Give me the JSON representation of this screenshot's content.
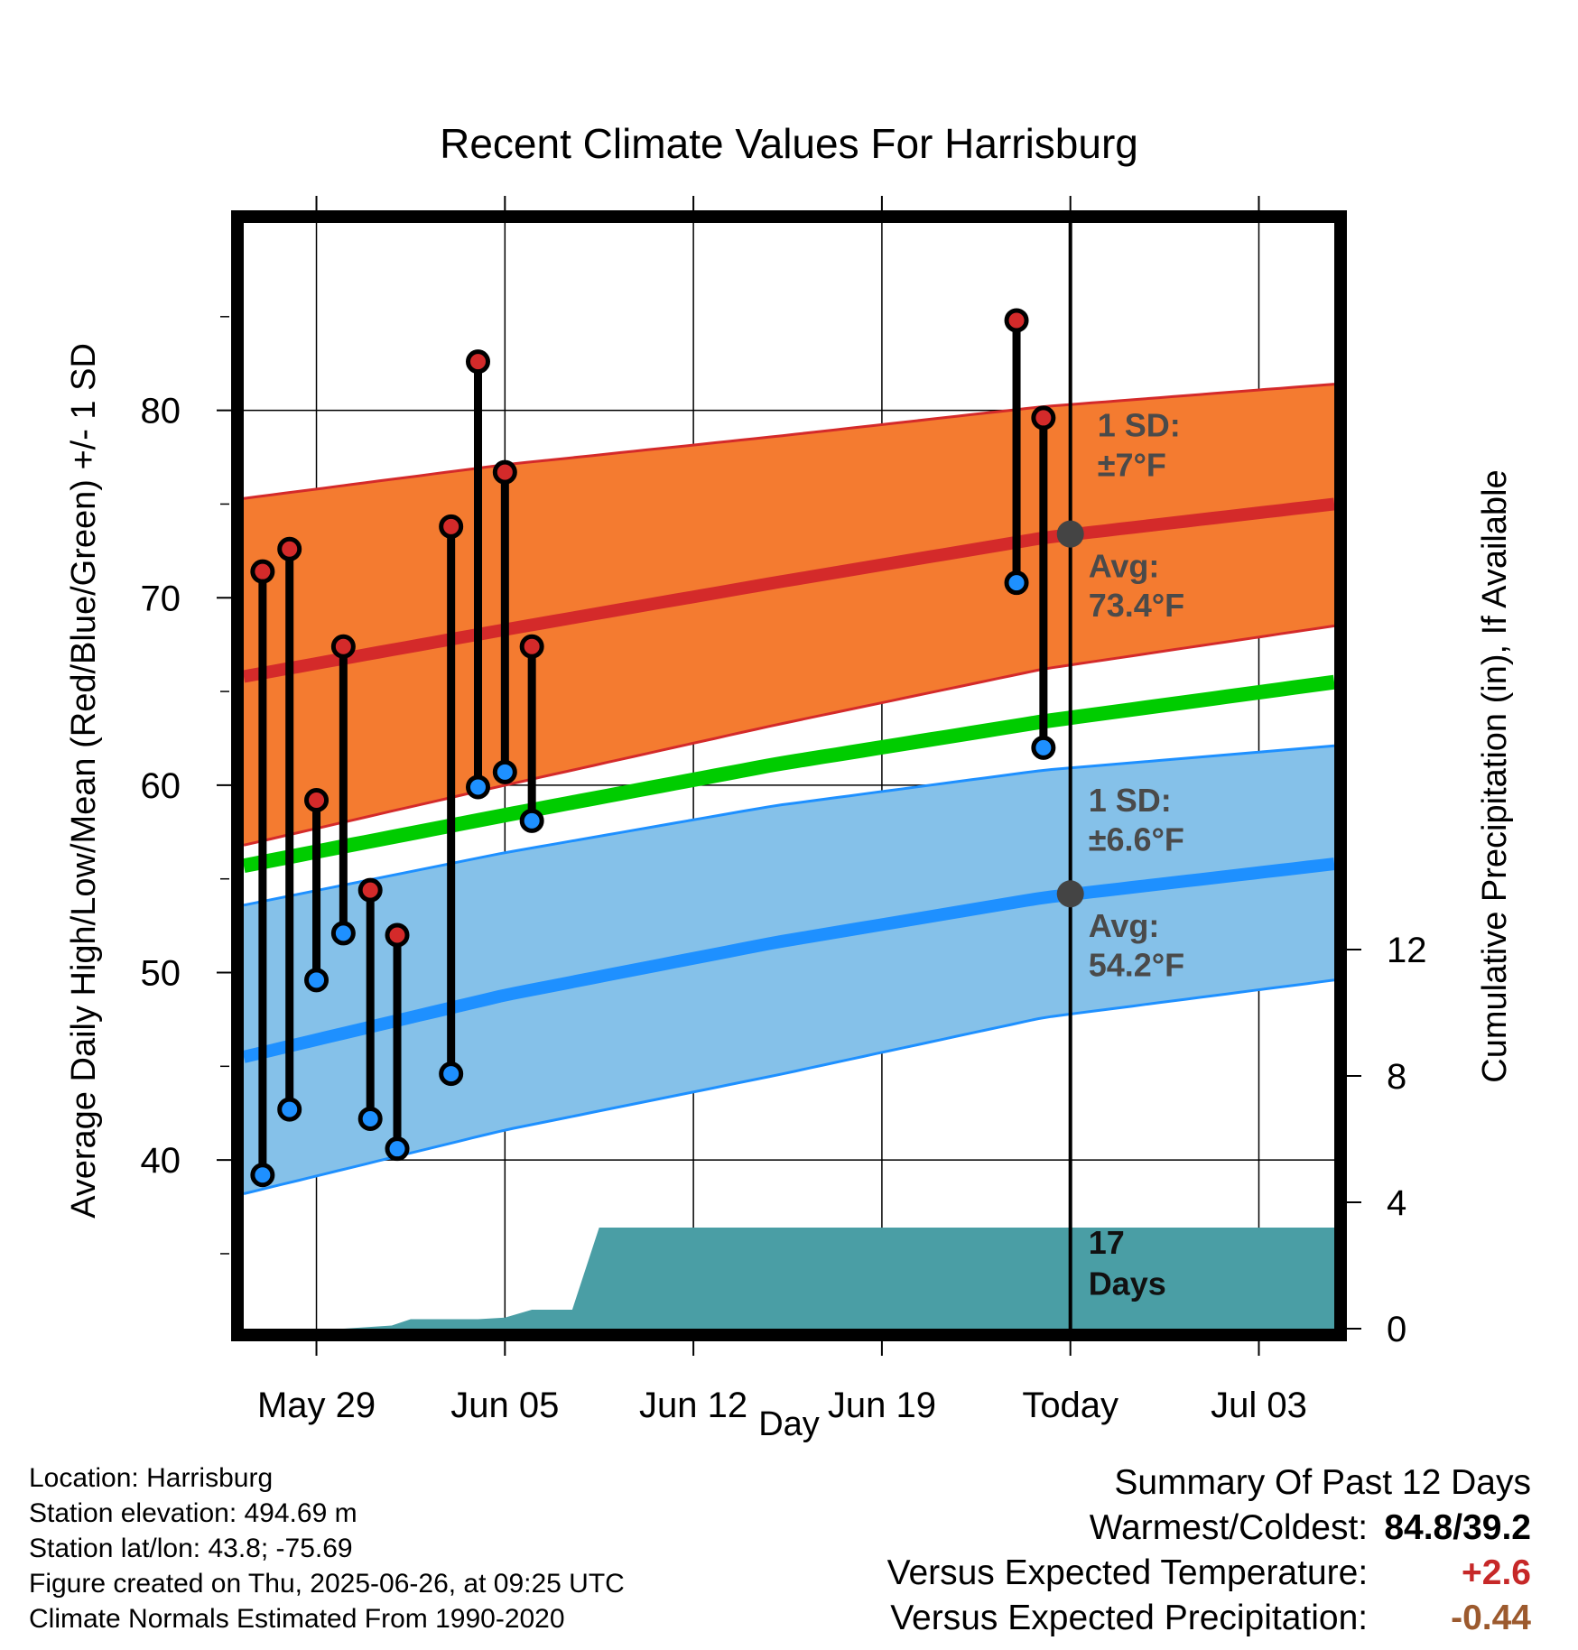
{
  "chart_data": {
    "type": "line",
    "title": "Recent Climate Values For Harrisburg",
    "xlabel": "Day",
    "ylabel": "Average Daily High/Low/Mean (Red/Blue/Green) +/- 1 SD",
    "ylabel_right": "Cumulative Precipitation (in), If Available",
    "x_ticks": [
      "May 29",
      "Jun 05",
      "Jun 12",
      "Jun 19",
      "Today",
      "Jul 03"
    ],
    "x_tick_days": [
      29,
      36,
      43,
      50,
      57,
      64
    ],
    "xlim": [
      26.3,
      66.8
    ],
    "ylim": [
      31,
      90
    ],
    "y_ticks": [
      40,
      50,
      60,
      70,
      80
    ],
    "y2lim": [
      0,
      35
    ],
    "y2_ticks": [
      0,
      4,
      8,
      12
    ],
    "today_day": 57,
    "normals": {
      "days": [
        26.3,
        36,
        46,
        56,
        66.8
      ],
      "high_mean": [
        65.8,
        68.3,
        70.8,
        73.2,
        75.0
      ],
      "high_sd_upper": [
        75.3,
        77.1,
        78.6,
        80.2,
        81.4
      ],
      "high_sd_lower": [
        56.8,
        60.0,
        63.2,
        66.2,
        68.5
      ],
      "daily_mean": [
        55.7,
        58.4,
        61.1,
        63.4,
        65.5
      ],
      "low_mean": [
        45.5,
        48.8,
        51.6,
        54.0,
        55.8
      ],
      "low_sd_upper": [
        53.6,
        56.4,
        58.9,
        60.8,
        62.1
      ],
      "low_sd_lower": [
        38.2,
        41.6,
        44.5,
        47.6,
        49.6
      ]
    },
    "observed": [
      {
        "day": 27,
        "high": 71.4,
        "low": 39.2
      },
      {
        "day": 28,
        "high": 72.6,
        "low": 42.7
      },
      {
        "day": 29,
        "high": 59.2,
        "low": 49.6
      },
      {
        "day": 30,
        "high": 67.4,
        "low": 52.1
      },
      {
        "day": 31,
        "high": 54.4,
        "low": 42.2
      },
      {
        "day": 32,
        "high": 52.0,
        "low": 40.6
      },
      {
        "day": 34,
        "high": 73.8,
        "low": 44.6
      },
      {
        "day": 35,
        "high": 82.6,
        "low": 59.9
      },
      {
        "day": 36,
        "high": 76.7,
        "low": 60.7
      },
      {
        "day": 37,
        "high": 67.4,
        "low": 58.1
      },
      {
        "day": 55,
        "high": 84.8,
        "low": 70.8
      },
      {
        "day": 56,
        "high": 79.6,
        "low": 62.0
      }
    ],
    "precip_cumulative": {
      "days": [
        26.3,
        28,
        29,
        30,
        31.8,
        32.5,
        33,
        34,
        35,
        36,
        37,
        38,
        38.5,
        39.5,
        66.8
      ],
      "values": [
        0,
        0,
        0,
        0,
        0.1,
        0.3,
        0.3,
        0.3,
        0.3,
        0.35,
        0.6,
        0.6,
        0.6,
        3.2,
        3.2
      ]
    },
    "annotations": {
      "high_sd": "1 SD:",
      "high_sd_val": "±7°F",
      "high_avg": "Avg:",
      "high_avg_val": "73.4°F",
      "low_sd": "1 SD:",
      "low_sd_val": "±6.6°F",
      "low_avg": "Avg:",
      "low_avg_val": "54.2°F",
      "days_num": "17",
      "days_word": "Days"
    },
    "today_high_avg": 73.4,
    "today_low_avg": 54.2,
    "colors": {
      "high_band": "#f47b30",
      "high_line": "#d42a2a",
      "mean_line": "#00cc00",
      "low_band": "#85c1e9",
      "low_line": "#1e90ff",
      "precip": "#4a9ea5",
      "high_marker": "#d42a2a",
      "low_marker": "#1e90ff",
      "avg_marker": "#444444"
    }
  },
  "meta": {
    "location": "Location: Harrisburg",
    "elevation": "Station elevation: 494.69 m",
    "latlon": "Station lat/lon: 43.8; -75.69",
    "created": "Figure created on Thu, 2025-06-26, at 09:25 UTC",
    "normals": "Climate Normals Estimated From 1990-2020"
  },
  "summary": {
    "heading": "Summary Of Past 12 Days",
    "warm_cold_label": "Warmest/Coldest:",
    "warm_cold_value": "84.8/39.2",
    "temp_label": "Versus Expected Temperature:",
    "temp_value": "+2.6",
    "temp_color": "#c62828",
    "precip_label": "Versus Expected Precipitation:",
    "precip_value": "-0.44",
    "precip_color": "#9c5a2e"
  }
}
